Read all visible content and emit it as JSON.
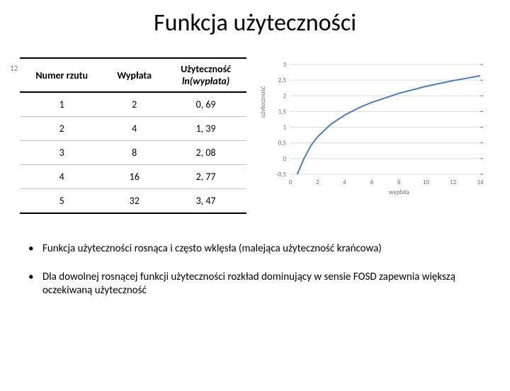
{
  "title": "Funkcja użyteczności",
  "page_number": "12",
  "table": {
    "columns": [
      "Numer\nrzutu",
      "Wypłata",
      "Użyteczność"
    ],
    "col2_sub": "ln(wypłata)",
    "rows": [
      [
        "1",
        "2",
        "0, 69"
      ],
      [
        "2",
        "4",
        "1, 39"
      ],
      [
        "3",
        "8",
        "2, 08"
      ],
      [
        "4",
        "16",
        "2, 77"
      ],
      [
        "5",
        "32",
        "3, 47"
      ]
    ]
  },
  "chart": {
    "type": "line",
    "xlabel": "wypłata",
    "ylabel": "użyteczność",
    "xlim": [
      0,
      14
    ],
    "ylim": [
      -0.5,
      3
    ],
    "xticks": [
      0,
      2,
      4,
      6,
      8,
      10,
      12,
      14
    ],
    "yticks": [
      -0.5,
      0,
      0.5,
      1,
      1.5,
      2,
      2.5,
      3
    ],
    "ytick_labels": [
      "-0,5",
      "0",
      "0,5",
      "1",
      "1,5",
      "2",
      "2,5",
      "3"
    ],
    "line_color": "#4a7ebb",
    "line_width": 2,
    "grid_color": "#d9d9d9",
    "tick_fontsize": 9,
    "tick_color": "#707070",
    "background_color": "#ffffff",
    "data_x": [
      0.5,
      1,
      1.5,
      2,
      3,
      4,
      5,
      6,
      8,
      10,
      12,
      14
    ],
    "data_y": [
      -0.5,
      0,
      0.405,
      0.693,
      1.099,
      1.386,
      1.609,
      1.792,
      2.079,
      2.303,
      2.485,
      2.639
    ]
  },
  "bullets": [
    "Funkcja użyteczności rosnąca i często wklęsła  (malejąca użyteczność krańcowa)",
    "Dla dowolnej rosnącej funkcji użyteczności rozkład dominujący w sensie FOSD zapewnia większą oczekiwaną użyteczność"
  ]
}
